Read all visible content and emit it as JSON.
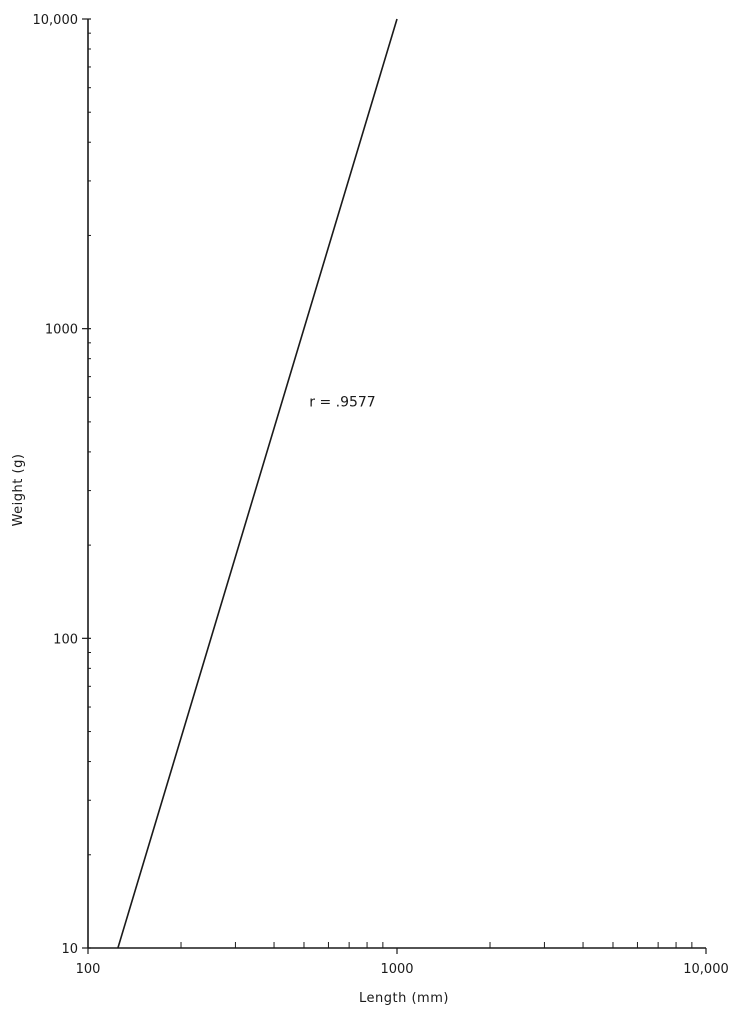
{
  "chart_data": {
    "type": "line",
    "x_scale": "log",
    "y_scale": "log",
    "xlabel": "Length (mm)",
    "ylabel": "Weight (g)",
    "xlim": [
      100,
      10000
    ],
    "ylim": [
      10,
      10000
    ],
    "x_ticks": [
      {
        "value": 100,
        "label": "100"
      },
      {
        "value": 1000,
        "label": "1000"
      },
      {
        "value": 10000,
        "label": "10,000"
      }
    ],
    "y_ticks": [
      {
        "value": 10,
        "label": "10"
      },
      {
        "value": 100,
        "label": "100"
      },
      {
        "value": 1000,
        "label": "1000"
      },
      {
        "value": 10000,
        "label": "10,000"
      }
    ],
    "series": [
      {
        "points": [
          [
            125,
            10
          ],
          [
            1000,
            10000
          ]
        ]
      }
    ],
    "annotations": [
      {
        "text": "r = .9577",
        "x": 520,
        "y": 560
      }
    ],
    "grid": false,
    "colors": {
      "line": "#1a1a1a",
      "axis": "#1a1a1a",
      "background": "#ffffff"
    }
  }
}
